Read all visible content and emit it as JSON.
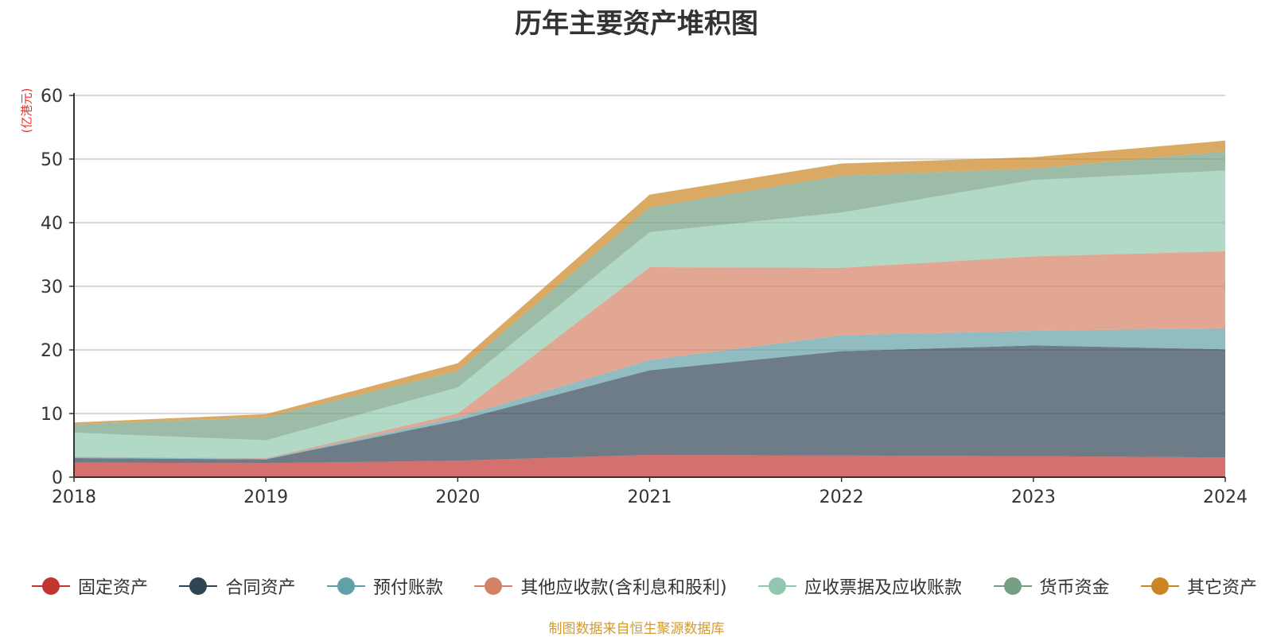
{
  "chart_data": {
    "type": "area",
    "stacked": true,
    "title": "历年主要资产堆积图",
    "y_unit": "(亿港元)",
    "x": [
      "2018",
      "2019",
      "2020",
      "2021",
      "2022",
      "2023",
      "2024"
    ],
    "ylim": [
      0,
      60
    ],
    "yticks": [
      0,
      10,
      20,
      30,
      40,
      50,
      60
    ],
    "grid": true,
    "legend_position": "bottom",
    "series": [
      {
        "name": "固定资产",
        "color": "#c23531",
        "values": [
          2.3,
          2.2,
          2.6,
          3.5,
          3.4,
          3.3,
          3.1
        ]
      },
      {
        "name": "合同资产",
        "color": "#2f4554",
        "values": [
          0.7,
          0.6,
          6.3,
          13.3,
          16.4,
          17.4,
          17.0
        ]
      },
      {
        "name": "预付账款",
        "color": "#61a0a8",
        "values": [
          0.2,
          0.1,
          0.5,
          1.6,
          2.5,
          2.3,
          3.3
        ]
      },
      {
        "name": "其他应收款(含利息和股利)",
        "color": "#d48265",
        "values": [
          0.0,
          0.1,
          0.6,
          14.6,
          10.6,
          11.7,
          12.1
        ]
      },
      {
        "name": "应收票据及应收账款",
        "color": "#91c7ae",
        "values": [
          3.8,
          2.8,
          4.1,
          5.5,
          8.7,
          12.0,
          12.7
        ]
      },
      {
        "name": "货币资金",
        "color": "#749f83",
        "values": [
          1.3,
          3.6,
          2.6,
          3.9,
          5.8,
          1.8,
          3.0
        ]
      },
      {
        "name": "其它资产",
        "color": "#ca8622",
        "values": [
          0.3,
          0.5,
          1.2,
          2.0,
          1.9,
          1.8,
          1.7
        ]
      }
    ]
  },
  "source_note": "制图数据来自恒生聚源数据库"
}
